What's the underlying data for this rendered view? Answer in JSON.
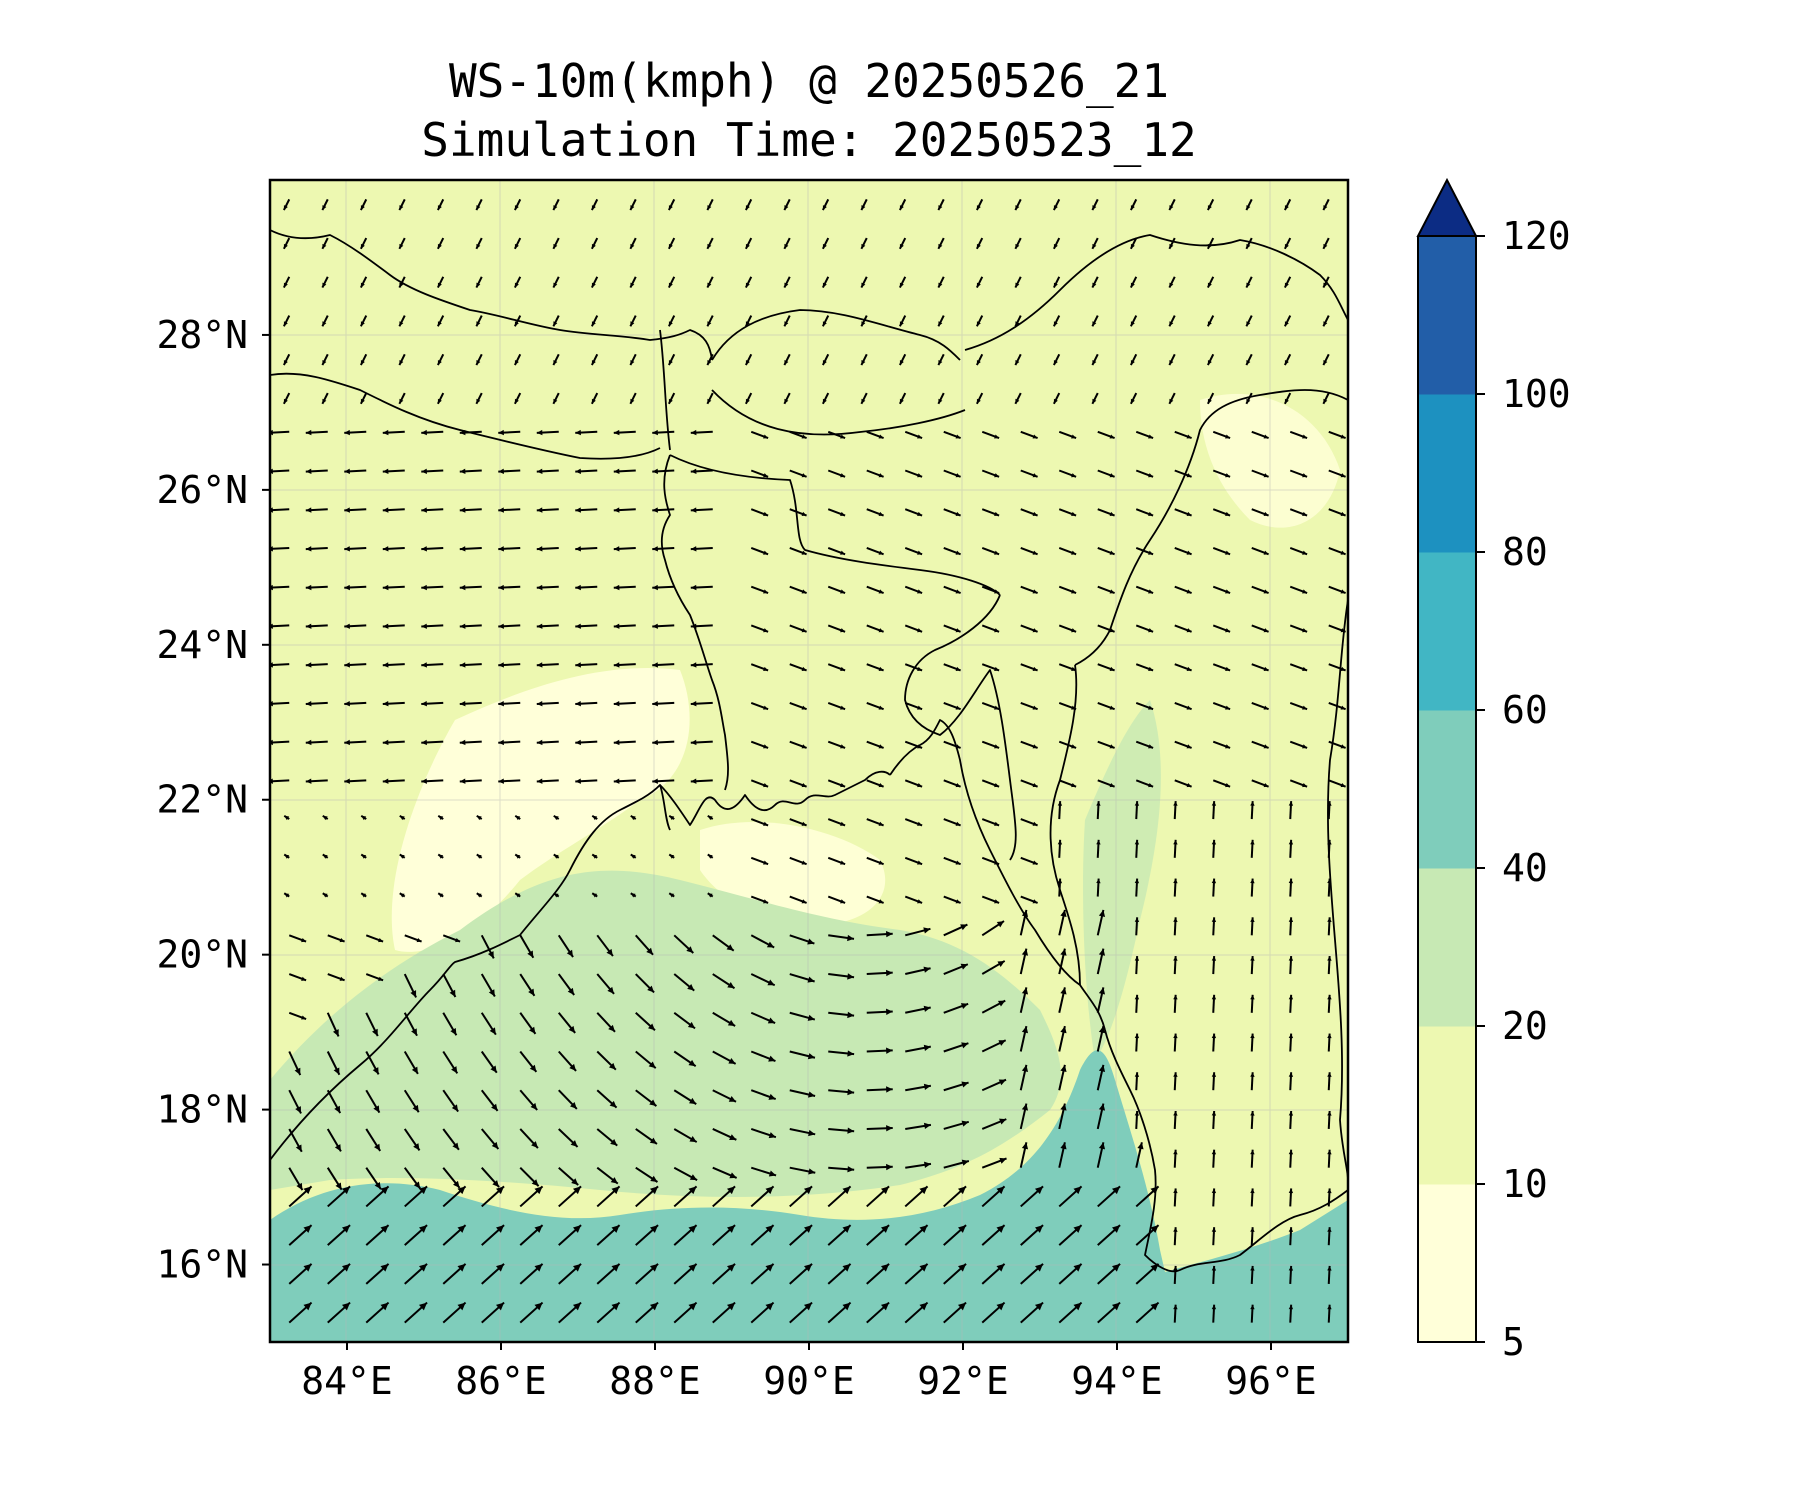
{
  "title": {
    "line1": "WS-10m(kmph) @ 20250526_21",
    "line2": "Simulation Time: 20250523_12"
  },
  "map": {
    "lon_range": [
      83.0,
      97.0
    ],
    "lat_range": [
      15.0,
      30.0
    ],
    "lon_ticks": [
      {
        "value": 84,
        "label": "84°E"
      },
      {
        "value": 86,
        "label": "86°E"
      },
      {
        "value": 88,
        "label": "88°E"
      },
      {
        "value": 90,
        "label": "90°E"
      },
      {
        "value": 92,
        "label": "92°E"
      },
      {
        "value": 94,
        "label": "94°E"
      },
      {
        "value": 96,
        "label": "96°E"
      }
    ],
    "lat_ticks": [
      {
        "value": 16,
        "label": "16°N"
      },
      {
        "value": 18,
        "label": "18°N"
      },
      {
        "value": 20,
        "label": "20°N"
      },
      {
        "value": 22,
        "label": "22°N"
      },
      {
        "value": 24,
        "label": "24°N"
      },
      {
        "value": 26,
        "label": "26°N"
      },
      {
        "value": 28,
        "label": "28°N"
      }
    ],
    "gridlines": true,
    "colors": {
      "5-10": "#ffffd9",
      "10-20": "#edf8b1",
      "20-40": "#c7e9b4",
      "40-60": "#7fcdbb",
      "60-80": "#41b6c4",
      "80-100": "#1d91c0",
      "100-120": "#225ea8",
      "over": "#0c2c84"
    }
  },
  "colorbar": {
    "levels": [
      5,
      10,
      20,
      40,
      60,
      80,
      100,
      120
    ],
    "labels": [
      "5",
      "10",
      "20",
      "40",
      "60",
      "80",
      "100",
      "120"
    ],
    "colors": [
      "#ffffd9",
      "#edf8b1",
      "#c7e9b4",
      "#7fcdbb",
      "#41b6c4",
      "#1d91c0",
      "#225ea8"
    ],
    "extend_color": "#0c2c84"
  }
}
